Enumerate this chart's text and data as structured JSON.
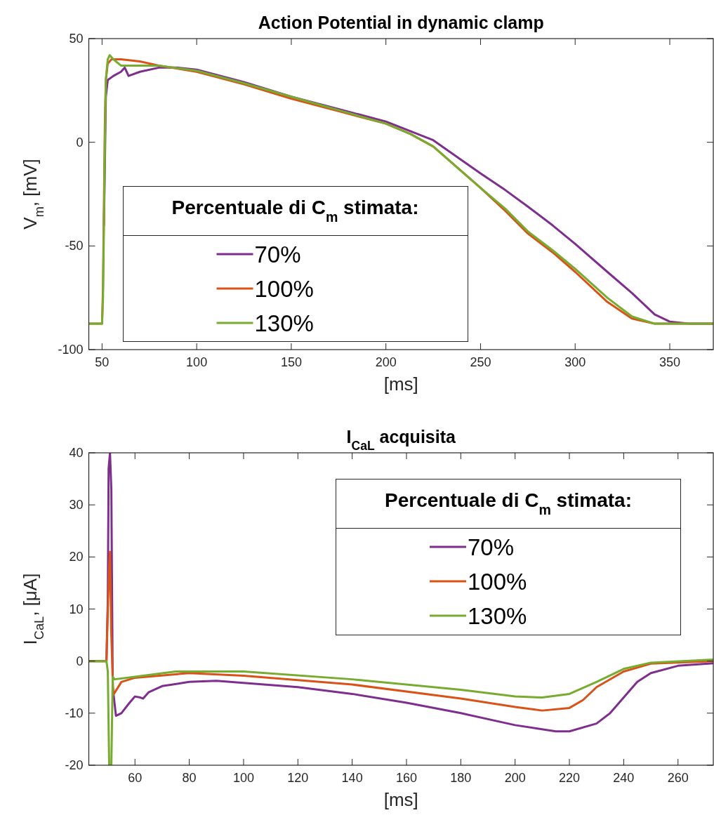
{
  "chart_data": [
    {
      "type": "line",
      "title": "Action Potential in dynamic clamp",
      "xlabel": "[ms]",
      "ylabel": "V$_{m}$, [mV]",
      "legend_title": "Percentuale di C$_{m}$ stimata:",
      "legend": "bottom left",
      "xlim": [
        43,
        373
      ],
      "ylim": [
        -100,
        50
      ],
      "xticks": [
        50,
        100,
        150,
        200,
        250,
        300,
        350
      ],
      "yticks": [
        -100,
        -50,
        0,
        50
      ],
      "series": [
        {
          "name": "70%",
          "color": "#7e2f8e",
          "x": [
            51,
            51.5,
            52,
            53,
            56,
            60,
            62,
            64,
            70,
            80,
            90,
            100,
            125,
            150,
            175,
            200,
            225,
            250,
            263,
            275,
            288,
            300,
            317,
            330,
            342,
            350,
            360,
            373
          ],
          "values": [
            -40,
            -10,
            22,
            30,
            32,
            34,
            36,
            32,
            34,
            36,
            36,
            35,
            29,
            22,
            16,
            10,
            1,
            -15,
            -23,
            -31,
            -40,
            -49,
            -62.5,
            -72.7,
            -83,
            -86.5,
            -87.5,
            -87.5
          ]
        },
        {
          "name": "100%",
          "color": "#d95319",
          "x": [
            43,
            50,
            50.5,
            51,
            51.5,
            52,
            53,
            55,
            60,
            70,
            80,
            100,
            125,
            150,
            175,
            200,
            213,
            225,
            250,
            263,
            275,
            288,
            300,
            317,
            330,
            342,
            350,
            373
          ],
          "values": [
            -87.5,
            -87.5,
            -70,
            -30,
            10,
            30,
            38,
            40,
            40,
            39,
            37,
            34,
            28,
            21,
            15,
            9,
            4,
            -2,
            -22,
            -33,
            -44,
            -53,
            -62.5,
            -77,
            -85,
            -87.5,
            -87.5,
            -87.5
          ]
        },
        {
          "name": "130%",
          "color": "#77ac30",
          "x": [
            43,
            50,
            50.5,
            51,
            51.5,
            52,
            53,
            54,
            56,
            60,
            70,
            80,
            100,
            125,
            150,
            175,
            200,
            213,
            225,
            250,
            263,
            275,
            288,
            300,
            317,
            330,
            342,
            350,
            373
          ],
          "values": [
            -87.5,
            -87.5,
            -75,
            -40,
            0,
            30,
            40,
            42,
            40,
            37,
            37,
            37,
            34.5,
            28.5,
            22,
            15.5,
            9,
            4,
            -2,
            -22,
            -32,
            -43,
            -52,
            -61,
            -75,
            -84,
            -87.5,
            -87.5,
            -87.5
          ]
        }
      ]
    },
    {
      "type": "line",
      "title": "I$_{CaL}$ acquisita",
      "xlabel": "[ms]",
      "ylabel": "I$_{CaL}$, [μA]",
      "legend_title": "Percentuale di C$_{m}$ stimata:",
      "legend": "top right",
      "xlim": [
        43,
        273
      ],
      "ylim": [
        -20,
        40
      ],
      "xticks": [
        60,
        80,
        100,
        120,
        140,
        160,
        180,
        200,
        220,
        240,
        260
      ],
      "yticks": [
        -20,
        -10,
        0,
        10,
        20,
        30,
        40
      ],
      "series": [
        {
          "name": "70%",
          "color": "#7e2f8e",
          "x": [
            43,
            49.5,
            50,
            50.3,
            50.8,
            51.3,
            51.8,
            53,
            55,
            58,
            60,
            62,
            63,
            65,
            70,
            80,
            90,
            100,
            120,
            140,
            160,
            180,
            200,
            215,
            220,
            230,
            235,
            240,
            245,
            250,
            260,
            273
          ],
          "values": [
            0,
            0,
            12,
            37,
            40,
            33,
            -5,
            -10.5,
            -10,
            -8,
            -6.8,
            -7,
            -7.2,
            -6,
            -4.8,
            -4,
            -3.8,
            -4.2,
            -5,
            -6.3,
            -8,
            -10,
            -12.3,
            -13.5,
            -13.5,
            -12,
            -10,
            -7,
            -4,
            -2.3,
            -0.9,
            -0.4
          ]
        },
        {
          "name": "100%",
          "color": "#d95319",
          "x": [
            43,
            49.5,
            50,
            50.5,
            50.8,
            51.3,
            52,
            55,
            60,
            80,
            100,
            140,
            180,
            200,
            210,
            220,
            225,
            230,
            240,
            250,
            273
          ],
          "values": [
            0,
            0,
            10,
            18,
            21,
            5,
            -6.5,
            -4,
            -3.2,
            -2.3,
            -2.8,
            -4.5,
            -7.2,
            -8.8,
            -9.5,
            -9,
            -7.5,
            -5,
            -2,
            -0.5,
            0
          ]
        },
        {
          "name": "130%",
          "color": "#77ac30",
          "x": [
            43,
            49.5,
            50,
            50.5,
            51.3,
            51.8,
            52.5,
            60,
            75,
            100,
            140,
            180,
            200,
            210,
            220,
            230,
            240,
            250,
            273
          ],
          "values": [
            0,
            0,
            -2,
            -20,
            -20,
            -3,
            -3.5,
            -3,
            -2,
            -2,
            -3.5,
            -5.5,
            -6.8,
            -7,
            -6.3,
            -4,
            -1.5,
            -0.3,
            0.3
          ]
        }
      ]
    }
  ]
}
